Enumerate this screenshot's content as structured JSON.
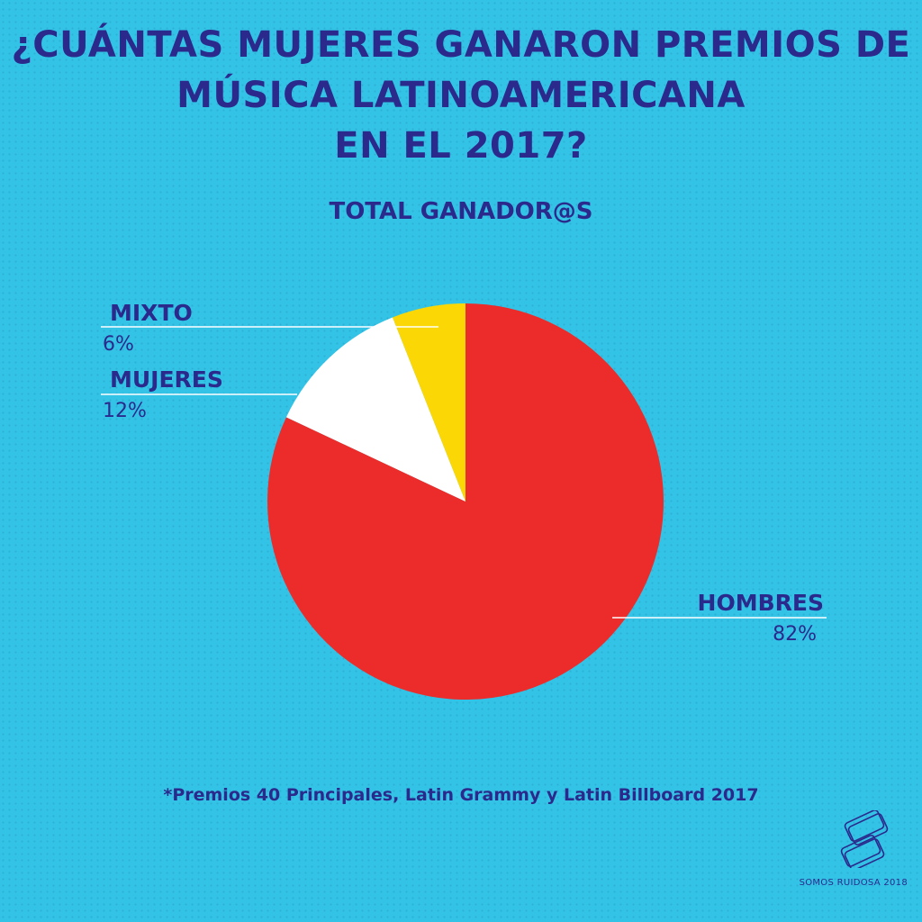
{
  "header": {
    "title_lines": [
      "¿CUÁNTAS MUJERES GANARON PREMIOS DE",
      "MÚSICA LATINOAMERICANA",
      "EN EL 2017?"
    ],
    "subtitle": "TOTAL GANADOR@S"
  },
  "chart_data": {
    "type": "pie",
    "title": "TOTAL GANADOR@S",
    "slices": [
      {
        "label": "HOMBRES",
        "value": 82,
        "display": "82%",
        "color": "#ec2c2a"
      },
      {
        "label": "MUJERES",
        "value": 12,
        "display": "12%",
        "color": "#ffffff"
      },
      {
        "label": "MIXTO",
        "value": 6,
        "display": "6%",
        "color": "#fbd805"
      }
    ],
    "start": "12 o'clock",
    "direction": "clockwise"
  },
  "footer": {
    "note": "*Premios 40 Principales, Latin Grammy y Latin Billboard 2017",
    "brand_letters": "SR",
    "credit": "SOMOS RUIDOSA 2018"
  },
  "colors": {
    "background": "#33c3e6",
    "text": "#2b2a8c"
  }
}
